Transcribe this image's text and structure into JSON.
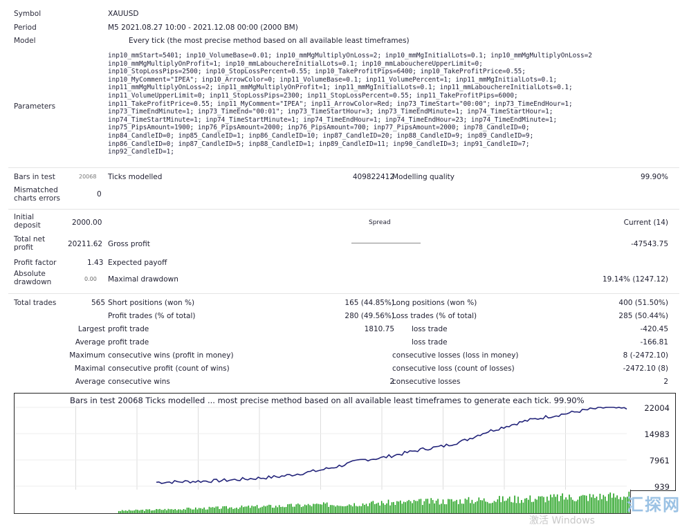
{
  "report": {
    "symbol": {
      "label": "Symbol",
      "value": "XAUUSD"
    },
    "period": {
      "label": "Period",
      "value": "M5 2021.08.27 10:00 - 2021.12.08 00:00 (2000 BM)"
    },
    "model": {
      "label": "Model",
      "value": "Every tick (the most precise method based on all available least timeframes)"
    },
    "parameters": {
      "label": "Parameters",
      "lines": [
        "inp10_mmStart=5401; inp10_VolumeBase=0.01; inp10_mmMgMultiplyOnLoss=2; inp10_mmMgInitialLots=0.1; inp10_mmMgMultiplyOnLoss=2",
        "inp10_mmMgMultiplyOnProfit=1; inp10_mmLabouchereInitialLots=0.1; inp10_mmLabouchereUpperLimit=0;",
        "inp10_StopLossPips=2500; inp10_StopLossPercent=0.55; inp10_TakeProfitPips=6400; inp10_TakeProfitPrice=0.55;",
        "inp10_MyComment=\"IPEA\"; inp10_ArrowColor=0; inp11_VolumeBase=0.1; inp11_VolumePercent=1; inp11_mmMgInitialLots=0.1;",
        "inp11_mmMgMultiplyOnLoss=2; inp11_mmMgMultiplyOnProfit=1; inp11_mmMgInitialLots=0.1; inp11_mmLabouchereInitialLots=0.1;",
        "inp11_VolumeUpperLimit=0; inp11_StopLossPips=2300; inp11_StopLossPercent=0.55; inp11_TakeProfitPips=6000;",
        "inp11_TakeProfitPrice=0.55; inp11_MyComment=\"IPEA\"; inp11_ArrowColor=Red; inp73_TimeStart=\"00:00\"; inp73_TimeEndHour=1;",
        "inp73_TimeEndMinute=1; inp73_TimeEnd=\"00:01\"; inp73_TimeStartHour=3; inp73_TimeEndMinute=1; inp74_TimeStartHour=1;",
        "inp74_TimeStartMinute=1; inp74_TimeStartMinute=1; inp74_TimeEndHour=1; inp74_TimeEndHour=23; inp74_TimeEndMinute=1;",
        "inp75_PipsAmount=1900; inp76_PipsAmount=2000; inp76_PipsAmount=700; inp77_PipsAmount=2000; inp78_CandleID=0;",
        "inp84_CandleID=0; inp85_CandleID=1; inp86_CandleID=10; inp87_CandleID=20; inp88_CandleID=9; inp89_CandleID=9;",
        "inp86_CandleID=0; inp87_CandleID=5; inp88_CandleID=1; inp89_CandleID=11; inp90_CandleID=3; inp91_CandleID=7;",
        "inp92_CandleID=1;"
      ]
    },
    "bars_in_test": {
      "label": "Bars in test",
      "value": "20068",
      "ticks_label": "Ticks modelled",
      "ticks_value": "409822412",
      "quality_label": "Modelling quality",
      "quality_value": "99.90%"
    },
    "mismatched": {
      "label": "Mismatched charts errors",
      "value": "0"
    },
    "initial_deposit": {
      "label": "Initial deposit",
      "value": "2000.00",
      "spread_label": "Spread",
      "spread_value": "Current (14)"
    },
    "total_net_profit": {
      "label": "Total net profit",
      "value": "20211.62",
      "gross_label": "Gross profit",
      "gross_value": "",
      "gross_loss_value": "-47543.75"
    },
    "profit_factor": {
      "label": "Profit factor",
      "value": "1.43",
      "expected_label": "Expected payoff",
      "expected_value": ""
    },
    "absolute_drawdown": {
      "label": "Absolute drawdown",
      "value": "0.00",
      "maximal_label": "Maximal drawdown",
      "maximal_value": "19.14% (1247.12)"
    },
    "total_trades": {
      "label": "Total trades",
      "value": "565",
      "short_label": "Short positions (won %)",
      "short_value": "165 (44.85%)",
      "long_label": "Long positions (won %)",
      "long_value": "400 (51.50%)"
    },
    "profit_trades": {
      "label": "Profit trades (% of total)",
      "value": "280 (49.56%)",
      "loss_label": "Loss trades (% of total)",
      "loss_value": "285 (50.44%)"
    },
    "largest": {
      "label": "Largest",
      "profit_label": "profit trade",
      "profit_value": "1810.75",
      "loss_label": "loss trade",
      "loss_value": "-420.45"
    },
    "average": {
      "label": "Average",
      "profit_label": "profit trade",
      "profit_value": "",
      "loss_label": "loss trade",
      "loss_value": "-166.81"
    },
    "maximum": {
      "label": "Maximum",
      "profit_label": "consecutive wins (profit in money)",
      "profit_value": "",
      "loss_label": "consecutive losses (loss in money)",
      "loss_value": "8 (-2472.10)"
    },
    "maximal": {
      "label": "Maximal",
      "profit_label": "consecutive profit (count of wins)",
      "profit_value": "",
      "loss_label": "consecutive loss (count of losses)",
      "loss_value": "-2472.10 (8)"
    },
    "average_consecutive": {
      "label": "Average",
      "profit_label": "consecutive wins",
      "profit_value": "2",
      "loss_label": "consecutive losses",
      "loss_value": "2"
    }
  },
  "chart": {
    "title": "Bars in test 20068 Ticks modelled ... most precise method based on all available least timeframes to generate each tick. 99.90%",
    "y_labels": [
      "22004",
      "14983",
      "7961",
      "939"
    ]
  },
  "watermark": {
    "text": "汇探网",
    "windows_text": "激活 Windows"
  },
  "chart_data": {
    "type": "line",
    "title": "",
    "ylim": [
      939,
      22004
    ],
    "ticks": [
      939,
      7961,
      14983,
      22004
    ],
    "balance": [
      2000,
      2100,
      2250,
      2400,
      2700,
      3100,
      3500,
      4300,
      5200,
      6400,
      7900,
      8500,
      9600,
      10800,
      11600,
      13000,
      15200,
      16800,
      18300,
      19400,
      20300,
      21300,
      22004,
      21600
    ]
  }
}
